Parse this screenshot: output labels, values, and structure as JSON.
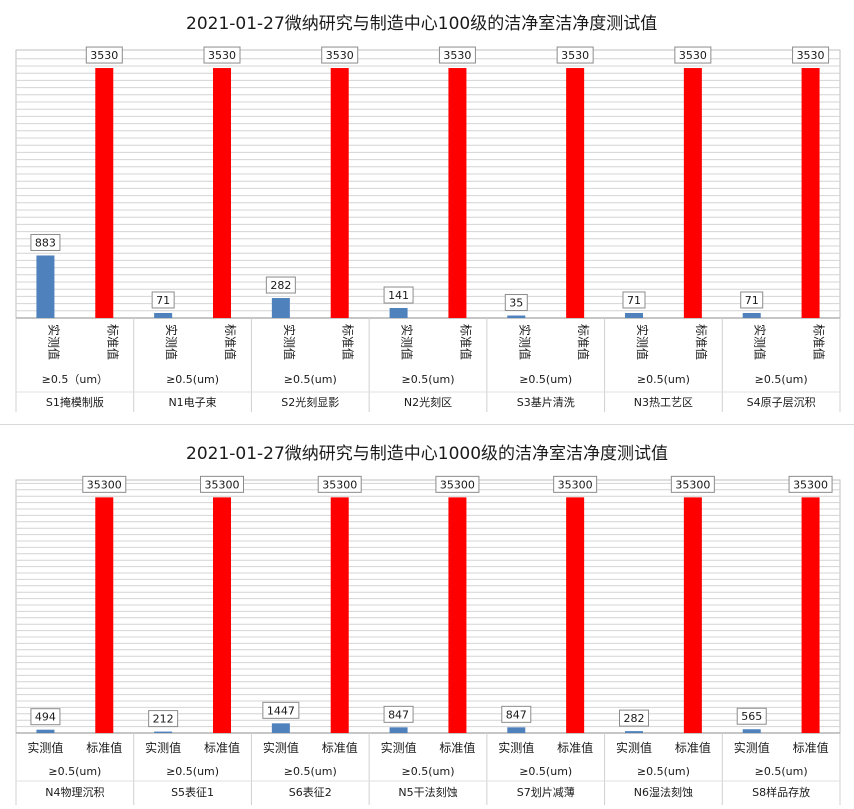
{
  "chart_data": [
    {
      "type": "bar",
      "title": "2021-01-27微纳研究与制造中心100级的洁净室洁净度测试值",
      "series_labels": [
        "实测值",
        "标准值"
      ],
      "series_colors": [
        "#4f81bd",
        "#ff0000"
      ],
      "particle_label": "≥0.5（um）",
      "particle_labels": [
        "≥0.5（um）",
        "≥0.5(um)",
        "≥0.5(um)",
        "≥0.5(um)",
        "≥0.5(um)",
        "≥0.5(um)",
        "≥0.5(um)"
      ],
      "categories": [
        "S1掩模制版",
        "N1电子束",
        "S2光刻显影",
        "N2光刻区",
        "S3基片清洗",
        "N3热工艺区",
        "S4原子层沉积"
      ],
      "series": [
        {
          "name": "实测值",
          "values": [
            883,
            71,
            282,
            141,
            35,
            71,
            71
          ]
        },
        {
          "name": "标准值",
          "values": [
            3530,
            3530,
            3530,
            3530,
            3530,
            3530,
            3530
          ]
        }
      ],
      "ylim": [
        0,
        3700
      ],
      "vertical_series_labels": true
    },
    {
      "type": "bar",
      "title": "2021-01-27微纳研究与制造中心1000级的洁净室洁净度测试值",
      "series_labels": [
        "实测值",
        "标准值"
      ],
      "series_colors": [
        "#4f81bd",
        "#ff0000"
      ],
      "particle_labels": [
        "≥0.5(um)",
        "≥0.5(um)",
        "≥0.5(um)",
        "≥0.5(um)",
        "≥0.5(um)",
        "≥0.5(um)",
        "≥0.5(um)"
      ],
      "categories": [
        "N4物理沉积",
        "S5表征1",
        "S6表征2",
        "N5干法刻蚀",
        "S7划片减薄",
        "N6湿法刻蚀",
        "S8样品存放"
      ],
      "series": [
        {
          "name": "实测值",
          "values": [
            494,
            212,
            1447,
            847,
            847,
            282,
            565
          ]
        },
        {
          "name": "标准值",
          "values": [
            35300,
            35300,
            35300,
            35300,
            35300,
            35300,
            35300
          ]
        }
      ],
      "ylim": [
        0,
        37000
      ],
      "vertical_series_labels": false
    }
  ]
}
